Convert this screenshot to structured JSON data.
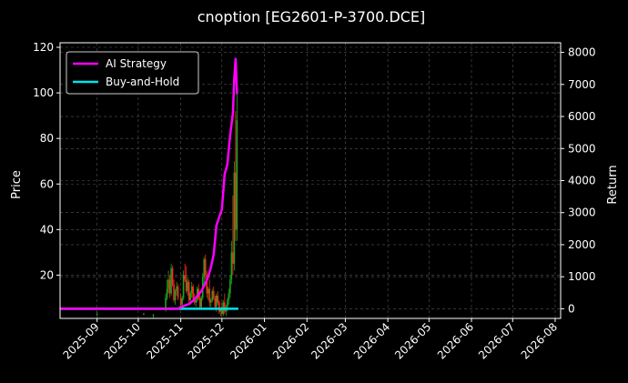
{
  "chart_data": {
    "type": "line",
    "title": "cnoption [EG2601-P-3700.DCE]",
    "xlabel": "",
    "ylabel": "Price",
    "y2label": "Return",
    "x_range": [
      "2025-08-05",
      "2026-08-05"
    ],
    "ylim": [
      1,
      122
    ],
    "y2lim": [
      -300,
      8300
    ],
    "grid": true,
    "legend_position": "top-left",
    "x_ticks": [
      "2025-09",
      "2025-10",
      "2025-11",
      "2025-12",
      "2026-01",
      "2026-02",
      "2026-03",
      "2026-04",
      "2026-05",
      "2026-06",
      "2026-07",
      "2026-08"
    ],
    "y_ticks": [
      "20",
      "40",
      "60",
      "80",
      "100",
      "120"
    ],
    "y2_ticks": [
      "0",
      "1000",
      "2000",
      "3000",
      "4000",
      "5000",
      "6000",
      "7000",
      "8000"
    ],
    "series": [
      {
        "name": "AI Strategy",
        "color": "#ff00ff",
        "axis": "right",
        "points": [
          [
            "2025-08-05",
            0
          ],
          [
            "2025-09-01",
            0
          ],
          [
            "2025-10-01",
            0
          ],
          [
            "2025-10-30",
            0
          ],
          [
            "2025-11-01",
            50
          ],
          [
            "2025-11-04",
            100
          ],
          [
            "2025-11-07",
            150
          ],
          [
            "2025-11-10",
            250
          ],
          [
            "2025-11-13",
            400
          ],
          [
            "2025-11-16",
            550
          ],
          [
            "2025-11-19",
            800
          ],
          [
            "2025-11-21",
            1000
          ],
          [
            "2025-11-23",
            1300
          ],
          [
            "2025-11-25",
            1700
          ],
          [
            "2025-11-27",
            2600
          ],
          [
            "2025-11-29",
            2850
          ],
          [
            "2025-12-01",
            3100
          ],
          [
            "2025-12-03",
            4200
          ],
          [
            "2025-12-05",
            4500
          ],
          [
            "2025-12-07",
            5400
          ],
          [
            "2025-12-09",
            6100
          ],
          [
            "2025-12-10",
            7200
          ],
          [
            "2025-12-11",
            7800
          ],
          [
            "2025-12-12",
            6700
          ]
        ]
      },
      {
        "name": "Buy-and-Hold",
        "color": "#00e5ee",
        "axis": "right",
        "points": [
          [
            "2025-08-05",
            0
          ],
          [
            "2025-12-13",
            0
          ]
        ]
      }
    ],
    "candles": {
      "up_color": "#1fa31f",
      "down_color": "#ff2a1a",
      "values": [
        [
          "2025-09-01",
          3,
          4,
          2,
          3
        ],
        [
          "2025-10-05",
          3,
          3.5,
          2.5,
          3
        ],
        [
          "2025-10-12",
          2,
          3,
          1,
          2.5
        ],
        [
          "2025-10-21",
          5,
          12,
          4,
          10
        ],
        [
          "2025-10-22",
          10,
          18,
          9,
          14
        ],
        [
          "2025-10-23",
          14,
          22,
          12,
          18
        ],
        [
          "2025-10-24",
          18,
          20,
          10,
          12
        ],
        [
          "2025-10-25",
          12,
          25,
          11,
          23
        ],
        [
          "2025-10-26",
          23,
          24,
          15,
          16
        ],
        [
          "2025-10-27",
          16,
          18,
          8,
          9
        ],
        [
          "2025-10-28",
          9,
          14,
          7,
          13
        ],
        [
          "2025-10-29",
          13,
          17,
          11,
          15
        ],
        [
          "2025-10-30",
          15,
          16,
          9,
          10
        ],
        [
          "2025-11-01",
          10,
          12,
          6,
          7
        ],
        [
          "2025-11-02",
          7,
          11,
          5,
          10
        ],
        [
          "2025-11-03",
          10,
          22,
          9,
          20
        ],
        [
          "2025-11-04",
          20,
          25,
          17,
          18
        ],
        [
          "2025-11-05",
          18,
          24,
          12,
          13
        ],
        [
          "2025-11-06",
          13,
          19,
          11,
          17
        ],
        [
          "2025-11-07",
          17,
          18,
          8,
          9
        ],
        [
          "2025-11-08",
          9,
          13,
          7,
          12
        ],
        [
          "2025-11-09",
          12,
          17,
          10,
          15
        ],
        [
          "2025-11-10",
          15,
          16,
          9,
          10
        ],
        [
          "2025-11-11",
          10,
          12,
          7,
          8
        ],
        [
          "2025-11-12",
          8,
          10,
          6,
          9
        ],
        [
          "2025-11-13",
          9,
          15,
          8,
          14
        ],
        [
          "2025-11-14",
          14,
          16,
          9,
          10
        ],
        [
          "2025-11-15",
          10,
          12,
          5,
          6
        ],
        [
          "2025-11-16",
          6,
          11,
          5,
          10
        ],
        [
          "2025-11-17",
          10,
          21,
          9,
          19
        ],
        [
          "2025-11-18",
          19,
          28,
          16,
          27
        ],
        [
          "2025-11-19",
          27,
          29,
          18,
          20
        ],
        [
          "2025-11-20",
          20,
          22,
          10,
          12
        ],
        [
          "2025-11-21",
          12,
          15,
          9,
          14
        ],
        [
          "2025-11-22",
          14,
          18,
          6,
          8
        ],
        [
          "2025-11-23",
          8,
          10,
          6,
          9
        ],
        [
          "2025-11-24",
          9,
          14,
          8,
          13
        ],
        [
          "2025-11-25",
          13,
          15,
          9,
          10
        ],
        [
          "2025-11-26",
          10,
          11,
          5,
          6
        ],
        [
          "2025-11-27",
          6,
          12,
          4,
          11
        ],
        [
          "2025-11-28",
          11,
          13,
          7,
          8
        ],
        [
          "2025-11-29",
          8,
          9,
          3,
          4
        ],
        [
          "2025-11-30",
          4,
          6,
          2,
          5
        ],
        [
          "2025-12-01",
          5,
          8,
          2,
          3
        ],
        [
          "2025-12-02",
          3,
          9,
          2,
          8
        ],
        [
          "2025-12-03",
          8,
          12,
          3,
          4
        ],
        [
          "2025-12-04",
          4,
          7,
          2,
          6
        ],
        [
          "2025-12-05",
          6,
          10,
          4,
          9
        ],
        [
          "2025-12-06",
          9,
          14,
          7,
          12
        ],
        [
          "2025-12-07",
          12,
          20,
          10,
          18
        ],
        [
          "2025-12-08",
          18,
          35,
          16,
          30
        ],
        [
          "2025-12-09",
          30,
          55,
          20,
          25
        ],
        [
          "2025-12-10",
          25,
          70,
          22,
          65
        ],
        [
          "2025-12-11",
          65,
          92,
          35,
          40
        ],
        [
          "2025-12-12",
          40,
          100,
          35,
          88
        ]
      ]
    }
  }
}
